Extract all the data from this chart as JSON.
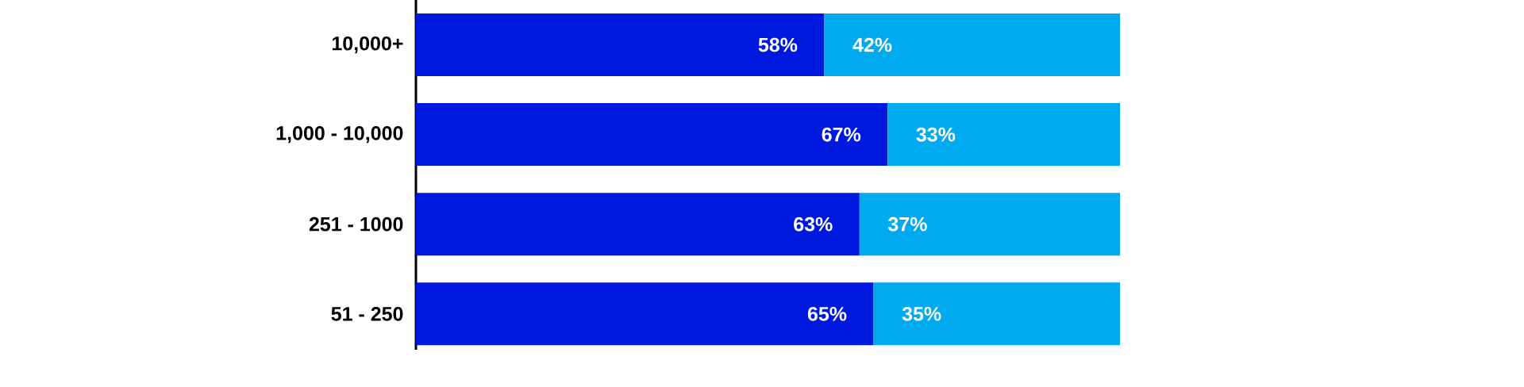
{
  "chart_data": {
    "type": "bar",
    "orientation": "horizontal",
    "stacked": true,
    "tick_labels": "y",
    "categories": [
      "10,000+",
      "1,000 - 10,000",
      "251 - 1000",
      "51 - 250"
    ],
    "series": [
      {
        "color": "#0019df",
        "values": [
          58,
          67,
          63,
          65
        ],
        "value_labels": [
          "58%",
          "67%",
          "63%",
          "65%"
        ]
      },
      {
        "color": "#00aaee",
        "values": [
          42,
          33,
          37,
          35
        ],
        "value_labels": [
          "42%",
          "33%",
          "37%",
          "35%"
        ]
      }
    ]
  }
}
